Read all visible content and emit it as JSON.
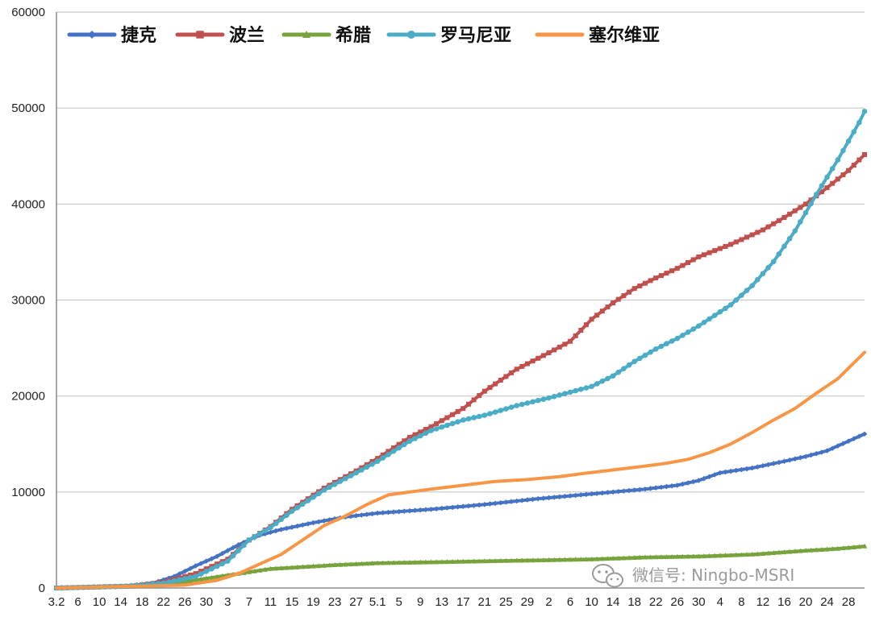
{
  "chart_data": {
    "type": "line",
    "title": "",
    "xlabel": "",
    "ylabel": "",
    "ylim": [
      0,
      60000
    ],
    "y_ticks": [
      0,
      10000,
      20000,
      30000,
      40000,
      50000,
      60000
    ],
    "x_ticks": [
      "3.2",
      "6",
      "10",
      "14",
      "18",
      "22",
      "26",
      "30",
      "3",
      "7",
      "11",
      "15",
      "19",
      "23",
      "27",
      "5.1",
      "5",
      "9",
      "13",
      "17",
      "21",
      "25",
      "29",
      "2",
      "6",
      "10",
      "14",
      "18",
      "22",
      "26",
      "30",
      "4",
      "8",
      "12",
      "16",
      "20",
      "24",
      "28"
    ],
    "x_tick_index": [
      0,
      4,
      8,
      12,
      16,
      20,
      24,
      28,
      32,
      36,
      40,
      44,
      48,
      52,
      56,
      60,
      64,
      68,
      72,
      76,
      80,
      84,
      88,
      92,
      96,
      100,
      104,
      108,
      112,
      116,
      120,
      124,
      128,
      132,
      136,
      140,
      144,
      148
    ],
    "n_points": 152,
    "grid": "horizontal",
    "legend_position": "top-left",
    "series": [
      {
        "name": "捷克",
        "color": "#4472c4",
        "marker": "diamond",
        "points": [
          [
            0,
            0
          ],
          [
            12,
            150
          ],
          [
            18,
            500
          ],
          [
            22,
            1200
          ],
          [
            26,
            2300
          ],
          [
            30,
            3300
          ],
          [
            34,
            4500
          ],
          [
            38,
            5500
          ],
          [
            42,
            6100
          ],
          [
            48,
            6800
          ],
          [
            54,
            7400
          ],
          [
            60,
            7800
          ],
          [
            70,
            8200
          ],
          [
            80,
            8700
          ],
          [
            90,
            9300
          ],
          [
            100,
            9800
          ],
          [
            110,
            10300
          ],
          [
            116,
            10700
          ],
          [
            120,
            11200
          ],
          [
            124,
            12000
          ],
          [
            130,
            12500
          ],
          [
            136,
            13200
          ],
          [
            140,
            13700
          ],
          [
            144,
            14300
          ],
          [
            148,
            15300
          ],
          [
            152,
            16300
          ]
        ]
      },
      {
        "name": "波兰",
        "color": "#c0504d",
        "marker": "square",
        "points": [
          [
            0,
            0
          ],
          [
            14,
            200
          ],
          [
            20,
            600
          ],
          [
            26,
            1500
          ],
          [
            32,
            3000
          ],
          [
            36,
            5000
          ],
          [
            40,
            6400
          ],
          [
            44,
            8200
          ],
          [
            50,
            10400
          ],
          [
            56,
            12200
          ],
          [
            60,
            13500
          ],
          [
            66,
            15700
          ],
          [
            70,
            16800
          ],
          [
            76,
            18700
          ],
          [
            80,
            20500
          ],
          [
            86,
            22800
          ],
          [
            92,
            24500
          ],
          [
            96,
            25700
          ],
          [
            100,
            28000
          ],
          [
            104,
            29700
          ],
          [
            108,
            31200
          ],
          [
            112,
            32300
          ],
          [
            116,
            33300
          ],
          [
            120,
            34500
          ],
          [
            126,
            35800
          ],
          [
            132,
            37300
          ],
          [
            136,
            38600
          ],
          [
            140,
            40000
          ],
          [
            144,
            41700
          ],
          [
            148,
            43500
          ],
          [
            152,
            45700
          ]
        ]
      },
      {
        "name": "希腊",
        "color": "#77a23c",
        "marker": "triangle",
        "points": [
          [
            0,
            0
          ],
          [
            20,
            300
          ],
          [
            28,
            1000
          ],
          [
            34,
            1500
          ],
          [
            40,
            2000
          ],
          [
            46,
            2200
          ],
          [
            52,
            2400
          ],
          [
            60,
            2600
          ],
          [
            70,
            2700
          ],
          [
            80,
            2800
          ],
          [
            90,
            2900
          ],
          [
            100,
            3000
          ],
          [
            110,
            3200
          ],
          [
            120,
            3300
          ],
          [
            130,
            3500
          ],
          [
            140,
            3900
          ],
          [
            146,
            4100
          ],
          [
            152,
            4400
          ]
        ]
      },
      {
        "name": "罗马尼亚",
        "color": "#4bacc6",
        "marker": "circle",
        "points": [
          [
            0,
            0
          ],
          [
            14,
            200
          ],
          [
            20,
            500
          ],
          [
            26,
            1200
          ],
          [
            32,
            2800
          ],
          [
            36,
            5000
          ],
          [
            40,
            6300
          ],
          [
            44,
            8000
          ],
          [
            50,
            10200
          ],
          [
            56,
            12000
          ],
          [
            60,
            13200
          ],
          [
            66,
            15300
          ],
          [
            70,
            16400
          ],
          [
            76,
            17500
          ],
          [
            80,
            18000
          ],
          [
            86,
            19000
          ],
          [
            92,
            19800
          ],
          [
            96,
            20400
          ],
          [
            100,
            21000
          ],
          [
            104,
            22100
          ],
          [
            108,
            23600
          ],
          [
            112,
            24900
          ],
          [
            116,
            26000
          ],
          [
            120,
            27300
          ],
          [
            126,
            29500
          ],
          [
            130,
            31500
          ],
          [
            134,
            34000
          ],
          [
            138,
            37200
          ],
          [
            142,
            41000
          ],
          [
            146,
            44600
          ],
          [
            150,
            48500
          ],
          [
            152,
            50800
          ]
        ]
      },
      {
        "name": "塞尔维亚",
        "color": "#f79646",
        "marker": "none",
        "points": [
          [
            0,
            0
          ],
          [
            24,
            300
          ],
          [
            30,
            800
          ],
          [
            34,
            1500
          ],
          [
            38,
            2500
          ],
          [
            42,
            3500
          ],
          [
            46,
            5000
          ],
          [
            50,
            6500
          ],
          [
            54,
            7500
          ],
          [
            58,
            8700
          ],
          [
            62,
            9700
          ],
          [
            66,
            10000
          ],
          [
            70,
            10300
          ],
          [
            76,
            10700
          ],
          [
            82,
            11100
          ],
          [
            88,
            11300
          ],
          [
            94,
            11600
          ],
          [
            98,
            11900
          ],
          [
            104,
            12300
          ],
          [
            110,
            12700
          ],
          [
            114,
            13000
          ],
          [
            118,
            13400
          ],
          [
            122,
            14100
          ],
          [
            126,
            15000
          ],
          [
            130,
            16200
          ],
          [
            134,
            17500
          ],
          [
            138,
            18700
          ],
          [
            142,
            20300
          ],
          [
            146,
            21800
          ],
          [
            150,
            24000
          ],
          [
            152,
            25100
          ]
        ]
      }
    ]
  },
  "watermark": {
    "text": "微信号: Ningbo-MSRI",
    "icon": "wechat-icon"
  }
}
